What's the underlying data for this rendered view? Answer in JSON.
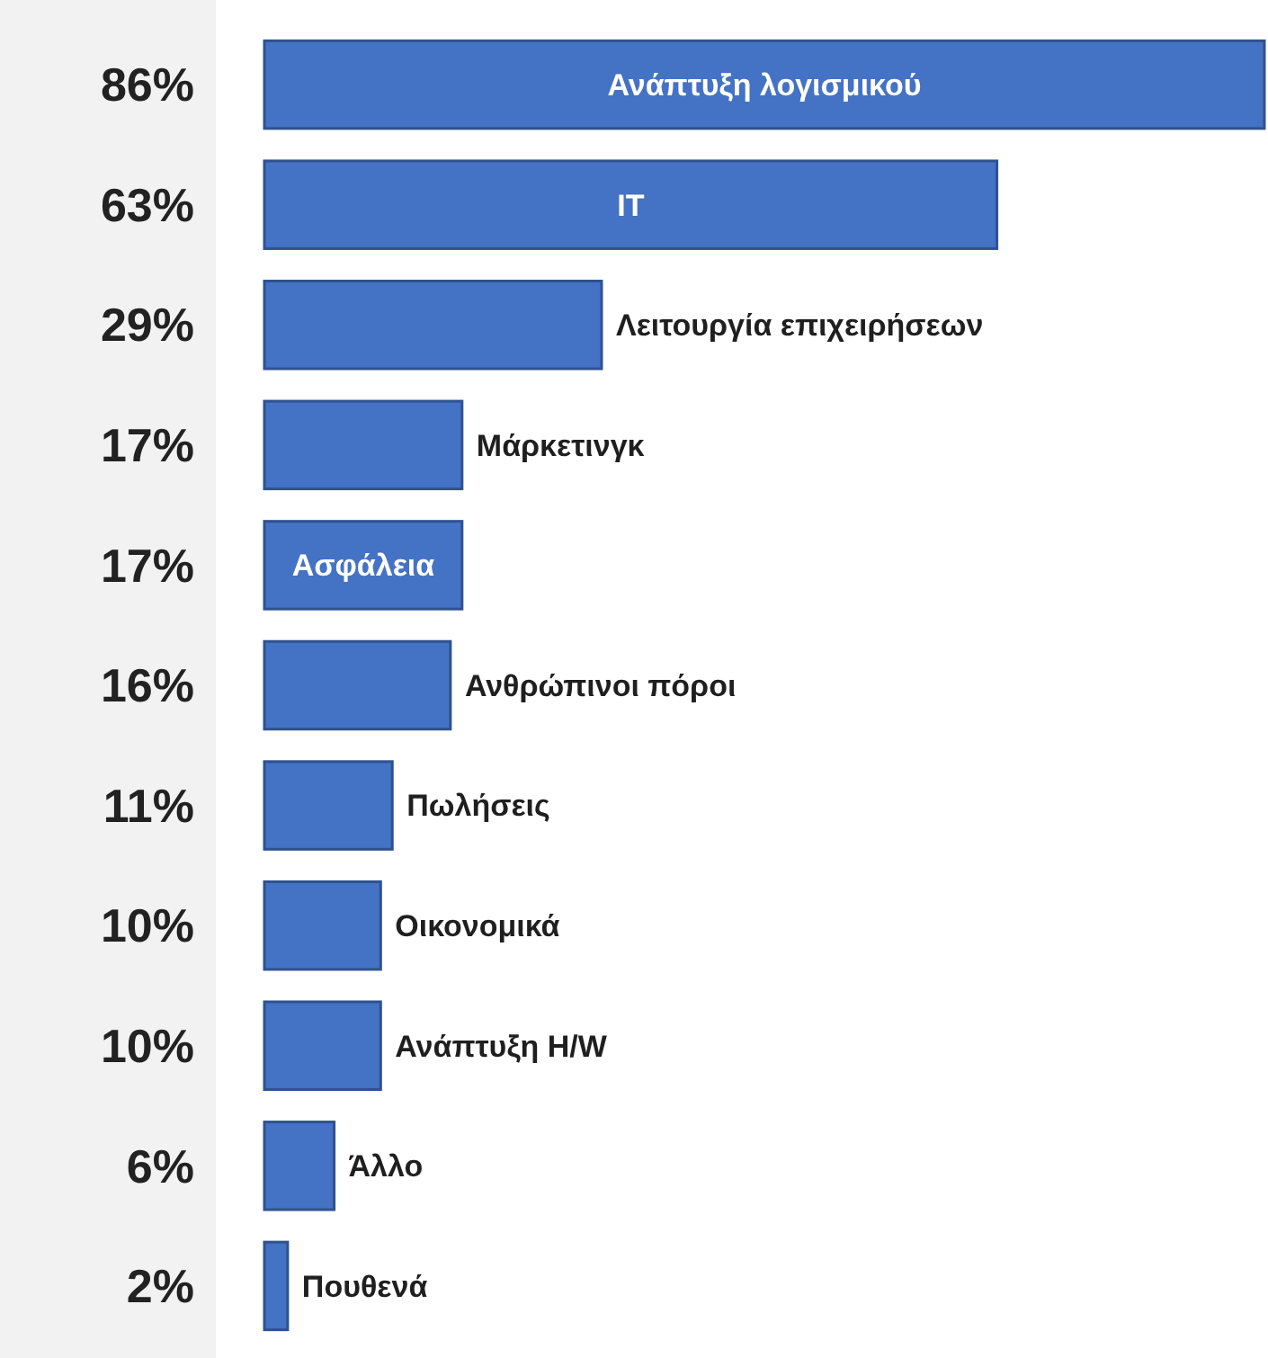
{
  "chart_data": {
    "type": "bar",
    "orientation": "horizontal",
    "categories": [
      "Ανάπτυξη λογισμικού",
      "IT",
      "Λειτουργία επιχειρήσεων",
      "Μάρκετινγκ",
      "Ασφάλεια",
      "Ανθρώπινοι πόροι",
      "Πωλήσεις",
      "Οικονομικά",
      "Ανάπτυξη H/W",
      "Άλλο",
      "Πουθενά"
    ],
    "values": [
      86,
      63,
      29,
      17,
      17,
      16,
      11,
      10,
      10,
      6,
      2
    ],
    "value_labels": [
      "86%",
      "63%",
      "29%",
      "17%",
      "17%",
      "16%",
      "11%",
      "10%",
      "10%",
      "6%",
      "2%"
    ],
    "color": "#4472c4"
  }
}
